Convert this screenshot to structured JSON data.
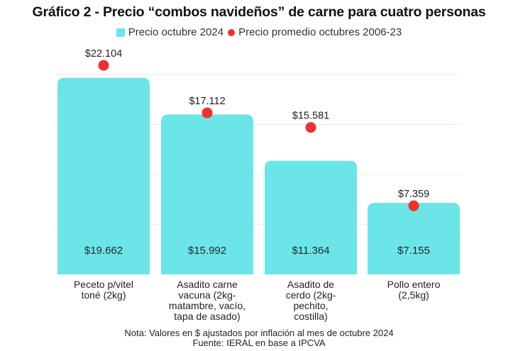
{
  "chart_data": {
    "type": "bar",
    "title": "Gráfico 2 - Precio “combos navideños” de carne para cuatro personas",
    "xlabel": "",
    "ylabel": "",
    "ylim": [
      0,
      25000
    ],
    "grid": true,
    "gridlines": [
      5000,
      10000,
      15000,
      20000
    ],
    "legend_position": "top-center",
    "categories": [
      [
        "Peceto p/vitel",
        "toné (2kg)"
      ],
      [
        "Asadito carne",
        "vacuna (2kg-",
        "matambre, vacío,",
        "tapa de asado)"
      ],
      [
        "Asadito de",
        "cerdo (2kg-",
        "pechito,",
        "costilla)"
      ],
      [
        "Pollo entero",
        "(2,5kg)"
      ]
    ],
    "series": [
      {
        "name": "Precio octubre 2024",
        "type": "bar",
        "color": "#6BE5E8",
        "values": [
          19662,
          15992,
          11364,
          7155
        ],
        "labels": [
          "$19.662",
          "$15.992",
          "$11.364",
          "$7.155"
        ]
      },
      {
        "name": "Precio promedio octubres 2006-23",
        "type": "scatter",
        "color": "#F22F2F",
        "values": [
          22104,
          17112,
          15581,
          7359
        ],
        "labels": [
          "$22.104",
          "$17.112",
          "$15.581",
          "$7.359"
        ]
      }
    ],
    "annotations": [
      "Nota: Valores en $ ajustados por inflación al mes de octubre 2024",
      "Fuente: IERAL en base a IPCVA"
    ]
  }
}
